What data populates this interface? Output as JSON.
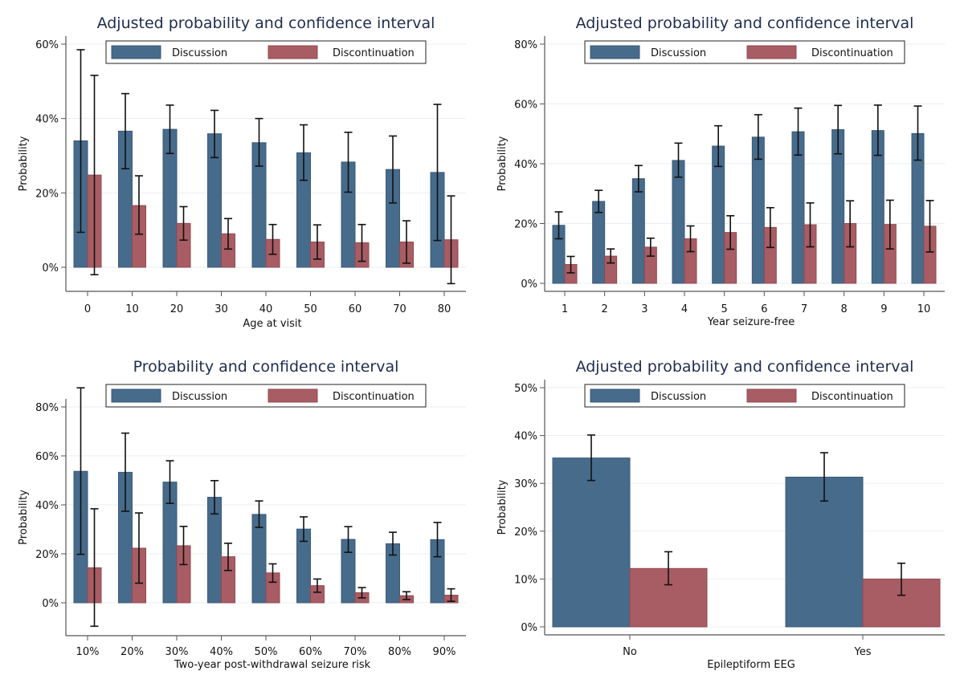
{
  "colors": {
    "discussion": "#476b8b",
    "discontinuation": "#a85c63",
    "discussion_edge": "#3b5a78",
    "discontinuation_edge": "#8f4a51",
    "grid": "#eaeef2",
    "title": "#1e2d4f"
  },
  "chart_data": [
    {
      "type": "bar",
      "title": "Adjusted probability and confidence interval",
      "xlabel": "Age at visit",
      "ylabel": "Probability",
      "ylim": [
        -0.065,
        0.6
      ],
      "yticks": [
        0,
        0.2,
        0.4,
        0.6
      ],
      "ytick_labels": [
        "0%",
        "20%",
        "40%",
        "60%"
      ],
      "grid": true,
      "legend": {
        "placement": "top",
        "entries": [
          "Discussion",
          "Discontinuation"
        ]
      },
      "categories": [
        "0",
        "10",
        "20",
        "30",
        "40",
        "50",
        "60",
        "70",
        "80"
      ],
      "series": [
        {
          "name": "Discussion",
          "values": [
            0.34,
            0.366,
            0.371,
            0.359,
            0.335,
            0.308,
            0.283,
            0.263,
            0.255
          ],
          "ci_low": [
            0.094,
            0.265,
            0.306,
            0.295,
            0.272,
            0.234,
            0.202,
            0.173,
            0.072
          ],
          "ci_high": [
            0.585,
            0.467,
            0.436,
            0.422,
            0.4,
            0.383,
            0.363,
            0.353,
            0.438
          ]
        },
        {
          "name": "Discontinuation",
          "values": [
            0.248,
            0.166,
            0.118,
            0.09,
            0.075,
            0.068,
            0.066,
            0.068,
            0.074
          ],
          "ci_low": [
            -0.02,
            0.089,
            0.073,
            0.049,
            0.035,
            0.022,
            0.016,
            0.011,
            -0.044
          ],
          "ci_high": [
            0.516,
            0.246,
            0.163,
            0.131,
            0.115,
            0.114,
            0.115,
            0.125,
            0.192
          ]
        }
      ]
    },
    {
      "type": "bar",
      "title": "Adjusted probability and confidence interval",
      "xlabel": "Year seizure-free",
      "ylabel": "Probability",
      "ylim": [
        -0.028,
        0.8
      ],
      "yticks": [
        0,
        0.2,
        0.4,
        0.6,
        0.8
      ],
      "ytick_labels": [
        "0%",
        "20%",
        "40%",
        "60%",
        "80%"
      ],
      "grid": true,
      "legend": {
        "placement": "top",
        "entries": [
          "Discussion",
          "Discontinuation"
        ]
      },
      "categories": [
        "1",
        "2",
        "3",
        "4",
        "5",
        "6",
        "7",
        "8",
        "9",
        "10"
      ],
      "series": [
        {
          "name": "Discussion",
          "values": [
            0.194,
            0.274,
            0.35,
            0.411,
            0.459,
            0.489,
            0.507,
            0.514,
            0.511,
            0.501
          ],
          "ci_low": [
            0.149,
            0.237,
            0.306,
            0.355,
            0.391,
            0.415,
            0.429,
            0.433,
            0.428,
            0.412
          ],
          "ci_high": [
            0.239,
            0.311,
            0.394,
            0.469,
            0.527,
            0.564,
            0.586,
            0.595,
            0.596,
            0.593
          ]
        },
        {
          "name": "Discontinuation",
          "values": [
            0.063,
            0.091,
            0.121,
            0.149,
            0.17,
            0.187,
            0.196,
            0.2,
            0.197,
            0.191
          ],
          "ci_low": [
            0.035,
            0.068,
            0.091,
            0.106,
            0.114,
            0.12,
            0.122,
            0.122,
            0.115,
            0.105
          ],
          "ci_high": [
            0.09,
            0.115,
            0.151,
            0.192,
            0.226,
            0.253,
            0.269,
            0.276,
            0.278,
            0.277
          ]
        }
      ]
    },
    {
      "type": "bar",
      "title": "Probability and confidence interval",
      "xlabel": "Two-year post-withdrawal seizure risk",
      "ylabel": "Probability",
      "ylim": [
        -0.135,
        0.9
      ],
      "yticks": [
        0,
        0.2,
        0.4,
        0.6,
        0.8
      ],
      "ytick_labels": [
        "0%",
        "20%",
        "40%",
        "60%",
        "80%"
      ],
      "grid": true,
      "legend": {
        "placement": "top",
        "entries": [
          "Discussion",
          "Discontinuation"
        ]
      },
      "categories": [
        "10%",
        "20%",
        "30%",
        "40%",
        "50%",
        "60%",
        "70%",
        "80%",
        "90%"
      ],
      "series": [
        {
          "name": "Discussion",
          "values": [
            0.537,
            0.533,
            0.493,
            0.431,
            0.361,
            0.301,
            0.259,
            0.241,
            0.258
          ],
          "ci_low": [
            0.198,
            0.374,
            0.406,
            0.363,
            0.308,
            0.251,
            0.206,
            0.195,
            0.188
          ],
          "ci_high": [
            0.878,
            0.693,
            0.58,
            0.499,
            0.416,
            0.351,
            0.311,
            0.288,
            0.328
          ]
        },
        {
          "name": "Discontinuation",
          "values": [
            0.143,
            0.223,
            0.233,
            0.188,
            0.122,
            0.07,
            0.041,
            0.029,
            0.031
          ],
          "ci_low": [
            -0.096,
            0.08,
            0.156,
            0.132,
            0.084,
            0.043,
            0.02,
            0.013,
            0.006
          ],
          "ci_high": [
            0.384,
            0.367,
            0.312,
            0.243,
            0.159,
            0.097,
            0.062,
            0.045,
            0.057
          ]
        }
      ]
    },
    {
      "type": "bar",
      "title": "Adjusted probability and confidence interval",
      "xlabel": "Epileptiform EEG",
      "ylabel": "Probability",
      "ylim": [
        -0.017,
        0.5
      ],
      "yticks": [
        0,
        0.1,
        0.2,
        0.3,
        0.4,
        0.5
      ],
      "ytick_labels": [
        "0%",
        "10%",
        "20%",
        "30%",
        "40%",
        "50%"
      ],
      "grid": true,
      "legend": {
        "placement": "top",
        "entries": [
          "Discussion",
          "Discontinuation"
        ]
      },
      "categories": [
        "No",
        "Yes"
      ],
      "series": [
        {
          "name": "Discussion",
          "values": [
            0.353,
            0.313
          ],
          "ci_low": [
            0.306,
            0.263
          ],
          "ci_high": [
            0.401,
            0.364
          ]
        },
        {
          "name": "Discontinuation",
          "values": [
            0.122,
            0.1
          ],
          "ci_low": [
            0.088,
            0.066
          ],
          "ci_high": [
            0.157,
            0.133
          ]
        }
      ]
    }
  ]
}
